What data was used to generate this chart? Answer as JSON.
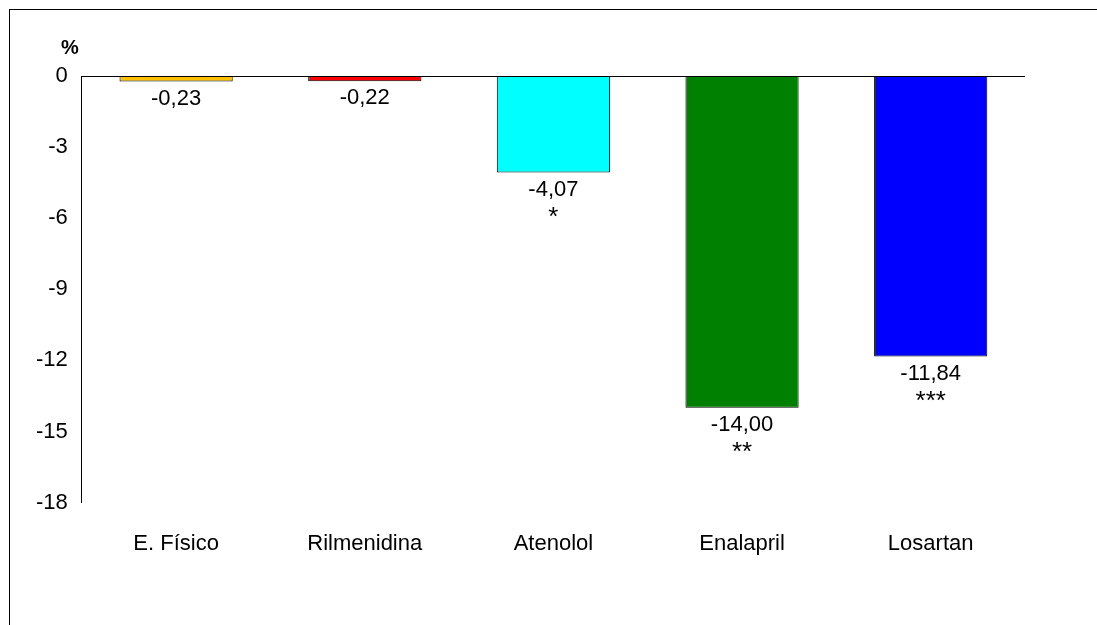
{
  "chart_data": {
    "type": "bar",
    "ylabel": "%",
    "categories": [
      "E. Físico",
      "Rilmenidina",
      "Atenolol",
      "Enalapril",
      "Losartan"
    ],
    "values": [
      -0.23,
      -0.22,
      -4.07,
      -14.0,
      -11.84
    ],
    "colors": [
      "#ffc000",
      "#ff0000",
      "#00ffff",
      "#008000",
      "#0000ff"
    ],
    "value_labels": [
      "-0,23",
      "-0,22",
      "-4,07",
      "-14,00",
      "-11,84"
    ],
    "annotations": [
      {
        "text": "*",
        "x": "Atenolol",
        "y": -4.07
      },
      {
        "text": "**",
        "x": "Enalapril",
        "y": -14.0
      },
      {
        "text": "***",
        "x": "Losartan",
        "y": -11.84
      }
    ],
    "ylim": [
      -18,
      0
    ],
    "yticks": [
      0,
      -3,
      -6,
      -9,
      -12,
      -15,
      -18
    ],
    "grid": false,
    "legend": false
  }
}
